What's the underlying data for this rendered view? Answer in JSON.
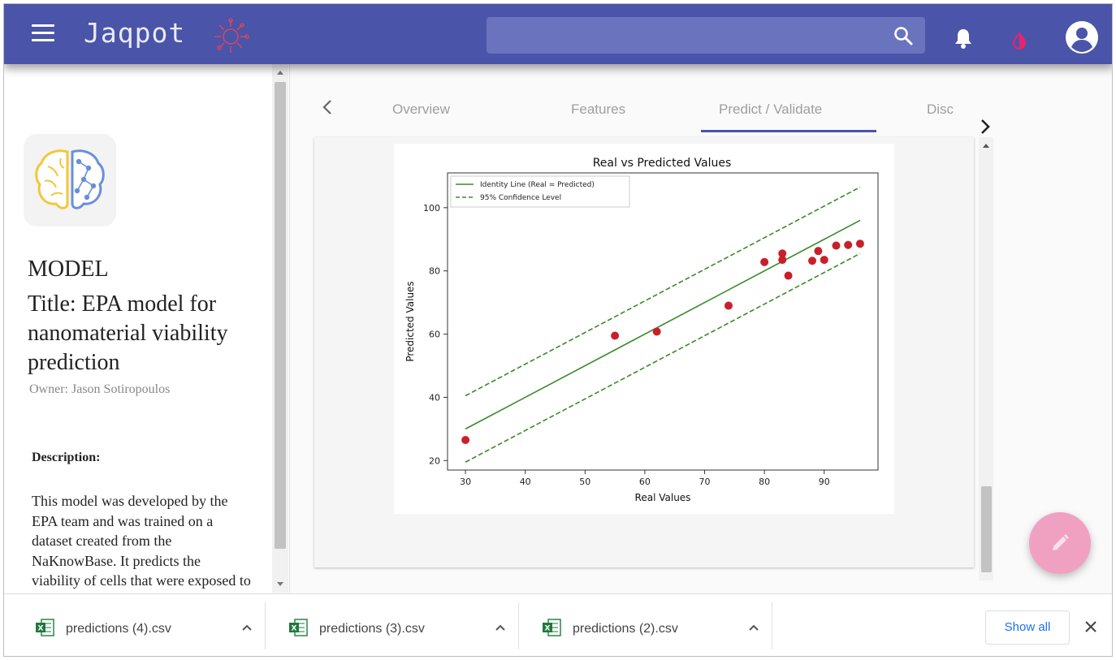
{
  "app": {
    "brand": "Jaqpot",
    "brand_color": "#4a54a8"
  },
  "search": {
    "placeholder": ""
  },
  "model": {
    "label": "MODEL",
    "title": "Title: EPA model for nanomaterial viability prediction",
    "owner": "Owner: Jason Sotiropoulos",
    "description_heading": "Description:",
    "description": "This model was developed by the EPA team and was trained on a dataset created from the NaKnowBase. It predicts the viability of cells that were exposed to nanomaterials"
  },
  "tabs": [
    {
      "label": "Overview",
      "active": false
    },
    {
      "label": "Features",
      "active": false
    },
    {
      "label": "Predict / Validate",
      "active": true
    },
    {
      "label": "Disc",
      "active": false
    }
  ],
  "chart_data": {
    "type": "scatter",
    "title": "Real vs Predicted Values",
    "xlabel": "Real Values",
    "ylabel": "Predicted Values",
    "xlim": [
      27,
      99
    ],
    "ylim": [
      17,
      111
    ],
    "xticks": [
      30,
      40,
      50,
      60,
      70,
      80,
      90
    ],
    "yticks": [
      20,
      40,
      60,
      80,
      100
    ],
    "legend": {
      "placement": "top-left",
      "entries": [
        "Identity Line (Real = Predicted)",
        "95% Confidence Level"
      ]
    },
    "identity_line": {
      "x": [
        30,
        96
      ],
      "y": [
        30,
        96
      ],
      "color": "#3a8a2a"
    },
    "confidence_upper": {
      "x": [
        30,
        96
      ],
      "y": [
        40.5,
        106.5
      ],
      "color": "#3a8a2a"
    },
    "confidence_lower": {
      "x": [
        30,
        96
      ],
      "y": [
        19.5,
        85.5
      ],
      "color": "#3a8a2a"
    },
    "points": {
      "color": "#c8202a",
      "x": [
        30,
        55,
        62,
        74,
        80,
        83,
        83,
        84,
        88,
        89,
        90,
        92,
        94,
        96
      ],
      "y": [
        26.5,
        59.5,
        60.8,
        69,
        82.8,
        85.5,
        83.5,
        78.5,
        83.2,
        86.3,
        83.5,
        88,
        88.2,
        88.6
      ]
    }
  },
  "downloads": [
    {
      "name": "predictions (4).csv"
    },
    {
      "name": "predictions (3).csv"
    },
    {
      "name": "predictions (2).csv"
    }
  ],
  "shelf": {
    "show_all": "Show all"
  },
  "icons": {
    "menu": "menu-icon",
    "search": "search-icon",
    "notifications": "bell-icon",
    "theme": "theme-toggle-icon",
    "account": "account-circle-icon",
    "edit": "pencil-icon",
    "file": "excel-file-icon"
  }
}
